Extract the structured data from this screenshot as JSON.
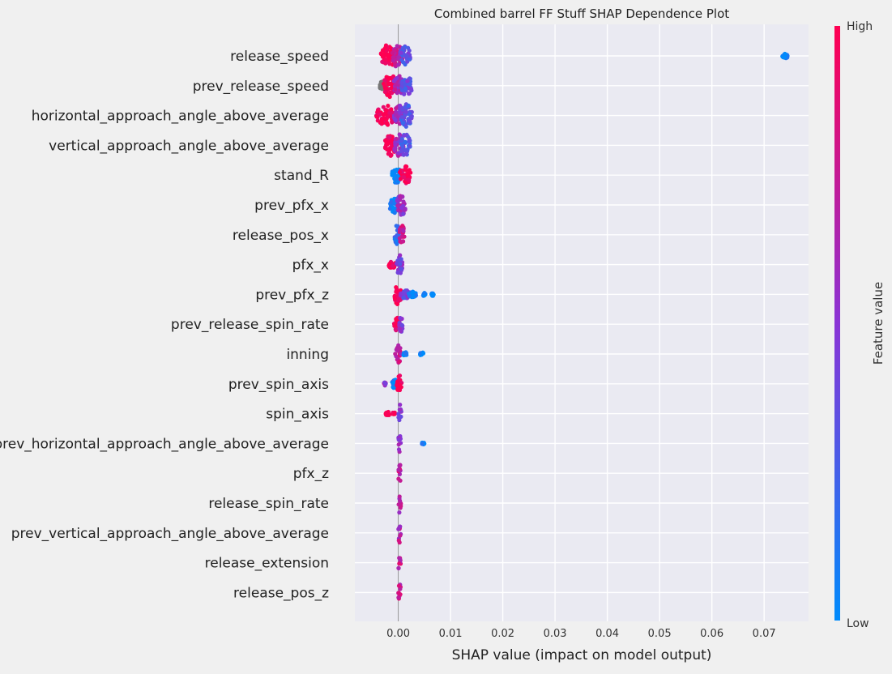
{
  "chart_data": {
    "type": "scatter",
    "subtype": "shap-beeswarm",
    "title": "Combined barrel FF Stuff SHAP Dependence Plot",
    "xlabel": "SHAP value (impact on model output)",
    "ylabel": "",
    "xlim": [
      -0.0083,
      0.0785
    ],
    "xticks": [
      "0.00",
      "0.01",
      "0.02",
      "0.03",
      "0.04",
      "0.05",
      "0.06",
      "0.07"
    ],
    "xtick_values": [
      0.0,
      0.01,
      0.02,
      0.03,
      0.04,
      0.05,
      0.06,
      0.07
    ],
    "grid": true,
    "colorbar": {
      "label": "Feature value",
      "high_label": "High",
      "low_label": "Low",
      "low_color": "#008bfb",
      "mid_color": "#8a34d6",
      "high_color": "#ff0052"
    },
    "colors": {
      "background": "#f0f0f0",
      "plot_area": "#eaeaf2",
      "grid": "#ffffff",
      "zero_line": "#999999",
      "text": "#333333",
      "missing": "#777777"
    },
    "features": [
      {
        "name": "release_speed",
        "clusters": [
          {
            "lo": -0.0033,
            "hi": -0.0005,
            "c": 1.0,
            "w": 1.0
          },
          {
            "lo": -0.0012,
            "hi": 0.0008,
            "c": 0.7,
            "w": 1.0
          },
          {
            "lo": 0.0004,
            "hi": 0.0023,
            "c": 0.35,
            "w": 0.9
          },
          {
            "lo": 0.0735,
            "hi": 0.0745,
            "c": 0.0,
            "w": 0.25
          }
        ]
      },
      {
        "name": "prev_release_speed",
        "clusters": [
          {
            "lo": -0.0035,
            "hi": -0.0022,
            "c": -1,
            "w": 0.45
          },
          {
            "lo": -0.0028,
            "hi": -0.0003,
            "c": 1.0,
            "w": 1.0
          },
          {
            "lo": -0.0008,
            "hi": 0.0012,
            "c": 0.65,
            "w": 0.9
          },
          {
            "lo": 0.0006,
            "hi": 0.0026,
            "c": 0.35,
            "w": 0.9
          }
        ]
      },
      {
        "name": "horizontal_approach_angle_above_average",
        "clusters": [
          {
            "lo": -0.0042,
            "hi": -0.0005,
            "c": 1.0,
            "w": 0.9
          },
          {
            "lo": -0.0008,
            "hi": 0.0012,
            "c": 0.6,
            "w": 0.9
          },
          {
            "lo": 0.0005,
            "hi": 0.0026,
            "c": 0.3,
            "w": 1.0
          }
        ]
      },
      {
        "name": "vertical_approach_angle_above_average",
        "clusters": [
          {
            "lo": -0.0025,
            "hi": -0.0004,
            "c": 1.0,
            "w": 0.95
          },
          {
            "lo": -0.0008,
            "hi": 0.001,
            "c": 0.6,
            "w": 1.0
          },
          {
            "lo": 0.0005,
            "hi": 0.0023,
            "c": 0.3,
            "w": 1.0
          }
        ]
      },
      {
        "name": "stand_R",
        "clusters": [
          {
            "lo": -0.0012,
            "hi": 0.0004,
            "c": 0.0,
            "w": 0.75
          },
          {
            "lo": 0.0003,
            "hi": 0.0024,
            "c": 1.0,
            "w": 0.8
          }
        ]
      },
      {
        "name": "prev_pfx_x",
        "clusters": [
          {
            "lo": -0.0016,
            "hi": 0.0001,
            "c": 0.05,
            "w": 0.7
          },
          {
            "lo": -0.0002,
            "hi": 0.0014,
            "c": 0.55,
            "w": 0.95
          }
        ]
      },
      {
        "name": "release_pos_x",
        "clusters": [
          {
            "lo": -0.0007,
            "hi": 0.0003,
            "c": 0.2,
            "w": 0.9
          },
          {
            "lo": 0.0002,
            "hi": 0.0012,
            "c": 0.75,
            "w": 0.9
          }
        ]
      },
      {
        "name": "pfx_x",
        "clusters": [
          {
            "lo": -0.0018,
            "hi": -0.0006,
            "c": 1.0,
            "w": 0.35
          },
          {
            "lo": -0.0004,
            "hi": 0.0008,
            "c": 0.45,
            "w": 0.85
          }
        ]
      },
      {
        "name": "prev_pfx_z",
        "clusters": [
          {
            "lo": -0.0008,
            "hi": 0.0006,
            "c": 1.0,
            "w": 0.9
          },
          {
            "lo": 0.0004,
            "hi": 0.0022,
            "c": 0.4,
            "w": 0.4
          },
          {
            "lo": 0.002,
            "hi": 0.0034,
            "c": 0.05,
            "w": 0.25
          },
          {
            "lo": 0.0047,
            "hi": 0.0052,
            "c": 0.0,
            "w": 0.15
          },
          {
            "lo": 0.0063,
            "hi": 0.0068,
            "c": 0.0,
            "w": 0.15
          }
        ]
      },
      {
        "name": "prev_release_spin_rate",
        "clusters": [
          {
            "lo": -0.0008,
            "hi": 0.0002,
            "c": 1.0,
            "w": 0.6
          },
          {
            "lo": 0.0001,
            "hi": 0.0009,
            "c": 0.5,
            "w": 0.7
          }
        ]
      },
      {
        "name": "inning",
        "clusters": [
          {
            "lo": -0.0006,
            "hi": 0.0006,
            "c": 0.75,
            "w": 0.85
          },
          {
            "lo": 0.001,
            "hi": 0.0016,
            "c": 0.0,
            "w": 0.2
          },
          {
            "lo": 0.0042,
            "hi": 0.0048,
            "c": 0.0,
            "w": 0.2
          }
        ]
      },
      {
        "name": "prev_spin_axis",
        "clusters": [
          {
            "lo": -0.0028,
            "hi": -0.0023,
            "c": 0.55,
            "w": 0.15
          },
          {
            "lo": -0.0012,
            "hi": 0.0,
            "c": 0.05,
            "w": 0.45
          },
          {
            "lo": -0.0003,
            "hi": 0.0007,
            "c": 1.0,
            "w": 0.75
          }
        ]
      },
      {
        "name": "spin_axis",
        "clusters": [
          {
            "lo": -0.0024,
            "hi": -0.0017,
            "c": 1.0,
            "w": 0.2
          },
          {
            "lo": -0.0011,
            "hi": -0.0006,
            "c": 1.0,
            "w": 0.15
          },
          {
            "lo": 0.0,
            "hi": 0.0006,
            "c": 0.45,
            "w": 0.85
          }
        ]
      },
      {
        "name": "prev_horizontal_approach_angle_above_average",
        "clusters": [
          {
            "lo": 0.0,
            "hi": 0.0005,
            "c": 0.5,
            "w": 0.9
          },
          {
            "lo": 0.0045,
            "hi": 0.005,
            "c": 0.0,
            "w": 0.15
          }
        ]
      },
      {
        "name": "pfx_z",
        "clusters": [
          {
            "lo": 0.0,
            "hi": 0.0005,
            "c": 0.75,
            "w": 0.85
          }
        ]
      },
      {
        "name": "release_spin_rate",
        "clusters": [
          {
            "lo": 0.0,
            "hi": 0.0005,
            "c": 0.7,
            "w": 0.85
          }
        ]
      },
      {
        "name": "prev_vertical_approach_angle_above_average",
        "clusters": [
          {
            "lo": 0.0,
            "hi": 0.0005,
            "c": 0.7,
            "w": 0.85
          }
        ]
      },
      {
        "name": "release_extension",
        "clusters": [
          {
            "lo": 0.0,
            "hi": 0.0005,
            "c": 0.75,
            "w": 0.85
          }
        ]
      },
      {
        "name": "release_pos_z",
        "clusters": [
          {
            "lo": 0.0,
            "hi": 0.0005,
            "c": 0.75,
            "w": 0.85
          }
        ]
      }
    ]
  }
}
